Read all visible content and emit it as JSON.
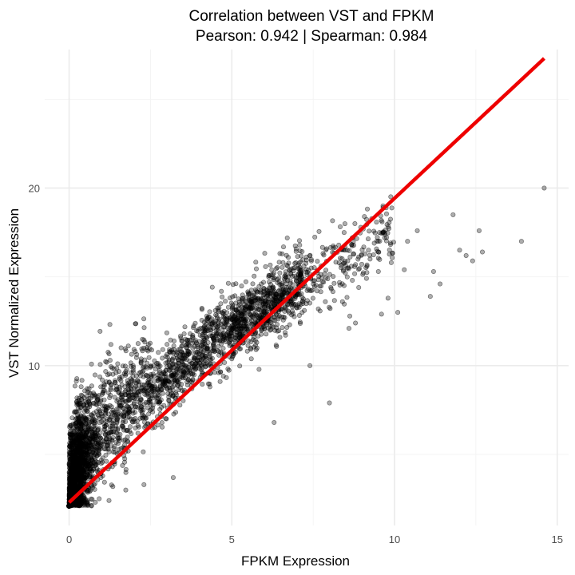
{
  "chart_data": {
    "type": "scatter",
    "title": "Correlation between VST and FPKM",
    "subtitle": "Pearson: 0.942 | Spearman: 0.984",
    "xlabel": "FPKM Expression",
    "ylabel": "VST Normalized Expression",
    "xlim": [
      -0.75,
      15.35
    ],
    "ylim": [
      1.0,
      27.8
    ],
    "x_ticks": [
      0,
      5,
      10,
      15
    ],
    "x_tick_labels": [
      "0",
      "5",
      "10",
      "15"
    ],
    "y_ticks": [
      10,
      20
    ],
    "y_tick_labels": [
      "10",
      "20"
    ],
    "grid": true,
    "legend": "none",
    "point_color": "#000000",
    "point_alpha": 0.32,
    "line_color": "#ee0000",
    "trend_line": {
      "x": [
        0,
        14.6
      ],
      "y": [
        2.3,
        27.3
      ]
    },
    "outliers": [
      {
        "x": 14.6,
        "y": 20.0
      },
      {
        "x": 13.9,
        "y": 17.0
      },
      {
        "x": 12.6,
        "y": 17.6
      },
      {
        "x": 12.7,
        "y": 16.4
      },
      {
        "x": 12.4,
        "y": 15.9
      },
      {
        "x": 12.2,
        "y": 16.2
      },
      {
        "x": 12.0,
        "y": 16.5
      },
      {
        "x": 11.8,
        "y": 18.5
      },
      {
        "x": 11.4,
        "y": 14.6
      },
      {
        "x": 11.2,
        "y": 15.3
      },
      {
        "x": 11.1,
        "y": 13.9
      },
      {
        "x": 10.7,
        "y": 17.6
      },
      {
        "x": 10.4,
        "y": 17.0
      },
      {
        "x": 10.3,
        "y": 15.4
      },
      {
        "x": 10.1,
        "y": 13.0
      },
      {
        "x": 9.9,
        "y": 15.8
      },
      {
        "x": 9.8,
        "y": 13.8
      },
      {
        "x": 9.6,
        "y": 12.9
      },
      {
        "x": 9.5,
        "y": 17.0
      },
      {
        "x": 9.2,
        "y": 16.5
      },
      {
        "x": 8.9,
        "y": 14.4
      },
      {
        "x": 8.8,
        "y": 12.4
      },
      {
        "x": 8.6,
        "y": 12.1
      },
      {
        "x": 8.4,
        "y": 13.6
      },
      {
        "x": 8.0,
        "y": 7.9
      },
      {
        "x": 7.4,
        "y": 10.0
      },
      {
        "x": 6.3,
        "y": 6.8
      },
      {
        "x": 3.2,
        "y": 3.7
      },
      {
        "x": 2.3,
        "y": 3.3
      },
      {
        "x": 0.0,
        "y": 2.1
      }
    ],
    "sample_density_note": ""
  }
}
